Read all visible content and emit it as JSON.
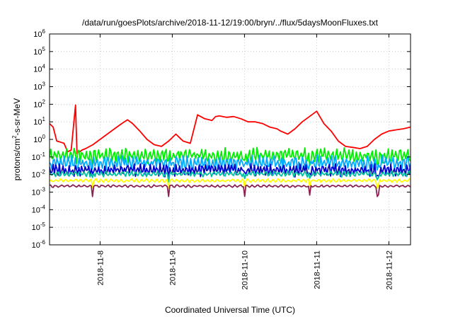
{
  "chart_data": {
    "type": "line",
    "title": "/data/run/goesPlots/archive/2018-11-12/19:00/bryn/../flux/5daysMoonFluxes.txt",
    "xlabel": "Coordinated Universal Time (UTC)",
    "ylabel_parts": {
      "pre": "protons/cm",
      "sup": "2",
      "post": "-s-sr-MeV"
    },
    "x_range_days": [
      0.0,
      5.0
    ],
    "yscale": "log",
    "ylim": [
      1e-06,
      1000000.0
    ],
    "grid": true,
    "legend": "none",
    "x_ticks": [
      {
        "label": "2018-11-8",
        "day": 0.7
      },
      {
        "label": "2018-11-9",
        "day": 1.7
      },
      {
        "label": "2018-11-10",
        "day": 2.7
      },
      {
        "label": "2018-11-11",
        "day": 3.7
      },
      {
        "label": "2018-11-12",
        "day": 4.7
      }
    ],
    "y_ticks": [
      {
        "base": "10",
        "exp": "-6",
        "value": 1e-06
      },
      {
        "base": "10",
        "exp": "-5",
        "value": 1e-05
      },
      {
        "base": "10",
        "exp": "-4",
        "value": 0.0001
      },
      {
        "base": "10",
        "exp": "-3",
        "value": 0.001
      },
      {
        "base": "10",
        "exp": "-2",
        "value": 0.01
      },
      {
        "base": "10",
        "exp": "-1",
        "value": 0.1
      },
      {
        "base": "10",
        "exp": "0",
        "value": 1
      },
      {
        "base": "10",
        "exp": "1",
        "value": 10
      },
      {
        "base": "10",
        "exp": "2",
        "value": 100
      },
      {
        "base": "10",
        "exp": "3",
        "value": 1000
      },
      {
        "base": "10",
        "exp": "4",
        "value": 10000
      },
      {
        "base": "10",
        "exp": "5",
        "value": 100000
      },
      {
        "base": "10",
        "exp": "6",
        "value": 1000000
      }
    ],
    "series": [
      {
        "color": "#ff0000",
        "x": [
          0.0,
          0.05,
          0.1,
          0.15,
          0.2,
          0.25,
          0.3,
          0.36,
          0.38,
          0.4,
          0.42,
          0.45,
          0.5,
          0.6,
          0.7,
          0.8,
          0.9,
          1.0,
          1.08,
          1.15,
          1.25,
          1.35,
          1.45,
          1.55,
          1.65,
          1.75,
          1.85,
          1.95,
          2.05,
          2.15,
          2.25,
          2.3,
          2.35,
          2.45,
          2.55,
          2.65,
          2.75,
          2.85,
          2.95,
          3.05,
          3.15,
          3.2,
          3.3,
          3.4,
          3.5,
          3.6,
          3.7,
          3.8,
          3.9,
          4.0,
          4.1,
          4.2,
          4.3,
          4.4,
          4.5,
          4.6,
          4.7,
          4.8,
          4.9,
          5.0,
          5.05,
          5.1,
          5.15,
          5.2,
          5.25,
          5.3,
          5.35,
          5.4,
          5.45,
          5.5,
          5.55
        ],
        "y": [
          8,
          5,
          0.8,
          0.7,
          0.6,
          0.2,
          0.25,
          90,
          0.15,
          0.2,
          0.2,
          0.25,
          0.3,
          0.5,
          1.0,
          2.0,
          4.0,
          8.0,
          13,
          8,
          3,
          1.0,
          0.5,
          0.4,
          0.8,
          2.0,
          0.8,
          0.6,
          25,
          15,
          12,
          20,
          22,
          18,
          20,
          15,
          10,
          10,
          8,
          5,
          4,
          3,
          2,
          4,
          10,
          20,
          40,
          8,
          3,
          0.8,
          0.4,
          0.35,
          0.3,
          0.4,
          1.0,
          2.0,
          3.0,
          3.5,
          4.0,
          5.0,
          6.0,
          4.0,
          3.0,
          2.0,
          0.9,
          0.8,
          0.6,
          0.7,
          0.9,
          2.0,
          5.0
        ]
      },
      {
        "color": "#00ee00",
        "base": 0.12,
        "amp": 0.3,
        "period": 0.055,
        "phase": 0.0
      },
      {
        "color": "#00aaff",
        "base": 0.045,
        "amp": 0.3,
        "period": 0.05,
        "phase": 0.7
      },
      {
        "color": "#0000cc",
        "base": 0.018,
        "amp": 0.25,
        "period": 0.045,
        "phase": 1.4
      },
      {
        "color": "#00c0a0",
        "base": 0.011,
        "amp": 0.12,
        "period": 0.06,
        "phase": 2.0
      },
      {
        "color": "#ffff00",
        "base": 0.0045,
        "amp": 0.07,
        "period": 0.07,
        "phase": 0.3
      },
      {
        "color": "#8b2252",
        "base": 0.0022,
        "amp": 0.05,
        "period": 0.08,
        "phase": 1.1
      }
    ],
    "dips_days": [
      0.6,
      1.65,
      2.7,
      3.6,
      4.55,
      5.05,
      5.35
    ]
  }
}
